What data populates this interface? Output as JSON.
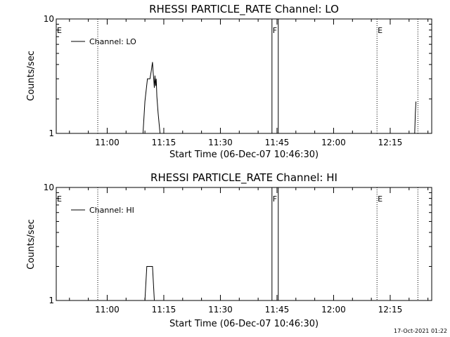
{
  "chart_data": [
    {
      "type": "line",
      "title": "RHESSI PARTICLE_RATE Channel: LO",
      "xlabel": "Start Time (06-Dec-07 10:46:30)",
      "ylabel": "Counts/sec",
      "y_scale": "log",
      "ylim": [
        1,
        10
      ],
      "y_ticks": [
        1,
        10
      ],
      "y_tick_labels": [
        "1",
        "10"
      ],
      "xlim": [
        "10:46:30",
        "12:26:00"
      ],
      "x_ticks": [
        "11:00",
        "11:15",
        "11:30",
        "11:45",
        "12:00",
        "12:15"
      ],
      "grid": false,
      "legend_position": "top-left",
      "series": [
        {
          "name": "Channel: LO",
          "x": [
            "11:09:30",
            "11:10:00",
            "11:10:40",
            "11:11:00",
            "11:11:20",
            "11:11:40",
            "11:12:00",
            "11:12:10",
            "11:12:20",
            "11:12:30",
            "11:12:40",
            "11:12:50",
            "11:13:00",
            "11:13:10",
            "11:13:30",
            "11:14:00",
            "11:14:20",
            "12:21:30",
            "12:21:40",
            "12:21:50"
          ],
          "y": [
            1.0,
            1.9,
            3.0,
            3.0,
            3.0,
            3.5,
            4.2,
            3.5,
            3.0,
            2.5,
            3.2,
            2.6,
            3.0,
            2.1,
            1.5,
            1.0,
            1.0,
            1.0,
            1.5,
            1.9
          ]
        }
      ],
      "markers": [
        {
          "label": "E",
          "time": "10:46:30",
          "style": "dotted"
        },
        {
          "label": "",
          "time": "10:57:30",
          "style": "dotted"
        },
        {
          "label": "F",
          "time": "11:43:40",
          "style": "solid"
        },
        {
          "label": "",
          "time": "11:45:20",
          "style": "solid"
        },
        {
          "label": "E",
          "time": "12:11:30",
          "style": "dotted"
        },
        {
          "label": "",
          "time": "12:22:20",
          "style": "dotted"
        }
      ]
    },
    {
      "type": "line",
      "title": "RHESSI PARTICLE_RATE Channel: HI",
      "xlabel": "Start Time (06-Dec-07 10:46:30)",
      "ylabel": "Counts/sec",
      "y_scale": "log",
      "ylim": [
        1,
        10
      ],
      "y_ticks": [
        1,
        10
      ],
      "y_tick_labels": [
        "1",
        "10"
      ],
      "xlim": [
        "10:46:30",
        "12:26:00"
      ],
      "x_ticks": [
        "11:00",
        "11:15",
        "11:30",
        "11:45",
        "12:00",
        "12:15"
      ],
      "grid": false,
      "legend_position": "top-left",
      "series": [
        {
          "name": "Channel: HI",
          "x": [
            "11:10:00",
            "11:10:30",
            "11:12:00",
            "11:12:30"
          ],
          "y": [
            1.0,
            2.0,
            2.0,
            1.0
          ]
        }
      ],
      "markers": [
        {
          "label": "E",
          "time": "10:46:30",
          "style": "dotted"
        },
        {
          "label": "",
          "time": "10:57:30",
          "style": "dotted"
        },
        {
          "label": "F",
          "time": "11:43:40",
          "style": "solid"
        },
        {
          "label": "",
          "time": "11:45:20",
          "style": "solid"
        },
        {
          "label": "E",
          "time": "12:11:30",
          "style": "dotted"
        },
        {
          "label": "",
          "time": "12:22:20",
          "style": "dotted"
        }
      ]
    }
  ],
  "footer": {
    "timestamp": "17-Oct-2021 01:22"
  }
}
